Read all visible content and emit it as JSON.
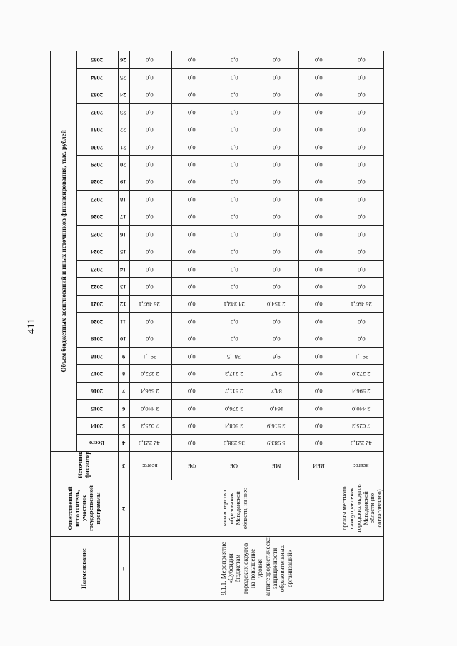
{
  "page_number": "411",
  "header": {
    "col_name": "Наименование",
    "col_responsible": "Ответственный исполнитель, участник государственной программы",
    "col_source": "Источник финансирования",
    "funding_title": "Объем бюджетных ассигнований и иных источников финансирования, тыс. рублей",
    "total_label": "Всего",
    "years": [
      "2014",
      "2015",
      "2016",
      "2017",
      "2018",
      "2019",
      "2020",
      "2021",
      "2022",
      "2023",
      "2024",
      "2025",
      "2026",
      "2027",
      "2028",
      "2029",
      "2030",
      "2031",
      "2032",
      "2033",
      "2034",
      "2035"
    ],
    "column_numbers": [
      "1",
      "2",
      "3",
      "4",
      "5",
      "6",
      "7",
      "8",
      "9",
      "10",
      "11",
      "12",
      "13",
      "14",
      "15",
      "16",
      "17",
      "18",
      "19",
      "20",
      "21",
      "22",
      "23",
      "24",
      "25",
      "26"
    ]
  },
  "activity": {
    "name": "9.1.1. Мероприятие «Субсидии бюджетам городских округов на повышение уровня антитеррористической защищенности образовательных организаций»",
    "responsible_main": "министерство образования Магаданской области, из них:",
    "responsible_local": "органы местного самоуправления городских округов Магаданской области (по согласованию)"
  },
  "rows": [
    {
      "source": "всего:",
      "total": "42 221,9",
      "values": [
        "7 025,3",
        "3 440,0",
        "2 596,4",
        "2 272,0",
        "391,1",
        "0,0",
        "0,0",
        "26 497,1",
        "0,0",
        "0,0",
        "0,0",
        "0,0",
        "0,0",
        "0,0",
        "0,0",
        "0,0",
        "0,0",
        "0,0",
        "0,0",
        "0,0",
        "0,0",
        "0,0"
      ]
    },
    {
      "source": "ФБ",
      "total": "0,0",
      "values": [
        "0,0",
        "0,0",
        "0,0",
        "0,0",
        "0,0",
        "0,0",
        "0,0",
        "0,0",
        "0,0",
        "0,0",
        "0,0",
        "0,0",
        "0,0",
        "0,0",
        "0,0",
        "0,0",
        "0,0",
        "0,0",
        "0,0",
        "0,0",
        "0,0",
        "0,0"
      ]
    },
    {
      "source": "ОБ",
      "total": "36 238,0",
      "values": [
        "3 508,4",
        "3 276,0",
        "2 511,7",
        "2 217,3",
        "381,5",
        "0,0",
        "0,0",
        "24 343,1",
        "0,0",
        "0,0",
        "0,0",
        "0,0",
        "0,0",
        "0,0",
        "0,0",
        "0,0",
        "0,0",
        "0,0",
        "0,0",
        "0,0",
        "0,0",
        "0,0"
      ]
    },
    {
      "source": "МБ",
      "total": "5 983,9",
      "values": [
        "3 516,9",
        "164,0",
        "84,7",
        "54,7",
        "9,6",
        "0,0",
        "0,0",
        "2 154,0",
        "0,0",
        "0,0",
        "0,0",
        "0,0",
        "0,0",
        "0,0",
        "0,0",
        "0,0",
        "0,0",
        "0,0",
        "0,0",
        "0,0",
        "0,0",
        "0,0"
      ]
    },
    {
      "source": "ВБИ",
      "total": "0,0",
      "values": [
        "0,0",
        "0,0",
        "0,0",
        "0,0",
        "0,0",
        "0,0",
        "0,0",
        "0,0",
        "0,0",
        "0,0",
        "0,0",
        "0,0",
        "0,0",
        "0,0",
        "0,0",
        "0,0",
        "0,0",
        "0,0",
        "0,0",
        "0,0",
        "0,0",
        "0,0"
      ]
    },
    {
      "source": "всего:",
      "total": "42 221,9",
      "values": [
        "7 025,3",
        "3 440,0",
        "2 596,4",
        "2 272,0",
        "391,1",
        "0,0",
        "0,0",
        "26 497,1",
        "0,0",
        "0,0",
        "0,0",
        "0,0",
        "0,0",
        "0,0",
        "0,0",
        "0,0",
        "0,0",
        "0,0",
        "0,0",
        "0,0",
        "0,0",
        "0,0"
      ]
    }
  ]
}
